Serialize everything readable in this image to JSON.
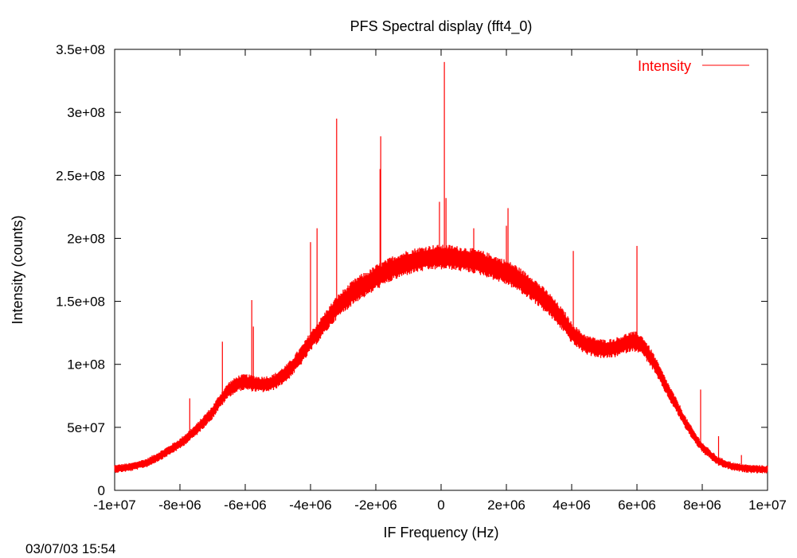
{
  "chart_data": {
    "type": "line",
    "title": "PFS Spectral display (fft4_0)",
    "xlabel": "IF Frequency (Hz)",
    "ylabel": "Intensity (counts)",
    "xlim": [
      -10000000,
      10000000
    ],
    "ylim": [
      0,
      350000000
    ],
    "x_ticks": [
      -10000000,
      -8000000,
      -6000000,
      -4000000,
      -2000000,
      0,
      2000000,
      4000000,
      6000000,
      8000000,
      10000000
    ],
    "x_tick_labels": [
      "-1e+07",
      "-8e+06",
      "-6e+06",
      "-4e+06",
      "-2e+06",
      "0",
      "2e+06",
      "4e+06",
      "6e+06",
      "8e+06",
      "1e+07"
    ],
    "y_ticks": [
      0,
      50000000,
      100000000,
      150000000,
      200000000,
      250000000,
      300000000,
      350000000
    ],
    "y_tick_labels": [
      "0",
      "5e+07",
      "1e+08",
      "1.5e+08",
      "2e+08",
      "2.5e+08",
      "3e+08",
      "3.5e+08"
    ],
    "grid": false,
    "legend": "top-right",
    "series": [
      {
        "name": "Intensity",
        "color": "#ff0000",
        "x": [
          -10000000,
          -9500000,
          -9000000,
          -8500000,
          -8000000,
          -7500000,
          -7000000,
          -6800000,
          -6500000,
          -6200000,
          -6000000,
          -5800000,
          -5500000,
          -5200000,
          -5000000,
          -4700000,
          -4500000,
          -4200000,
          -4000000,
          -3700000,
          -3500000,
          -3200000,
          -3000000,
          -2700000,
          -2500000,
          -2200000,
          -2000000,
          -1700000,
          -1500000,
          -1200000,
          -1000000,
          -700000,
          -500000,
          -200000,
          0,
          300000,
          500000,
          800000,
          1000000,
          1300000,
          1500000,
          1800000,
          2000000,
          2300000,
          2500000,
          2800000,
          3000000,
          3300000,
          3500000,
          3800000,
          4000000,
          4300000,
          4500000,
          4800000,
          5000000,
          5300000,
          5500000,
          5800000,
          6000000,
          6200000,
          6500000,
          6800000,
          7000000,
          7300000,
          7500000,
          7800000,
          8000000,
          8300000,
          8500000,
          8800000,
          9000000,
          9300000,
          9500000,
          9800000,
          10000000
        ],
        "values": [
          17000000,
          18500000,
          22000000,
          29000000,
          37000000,
          48000000,
          62000000,
          70000000,
          80000000,
          85000000,
          86000000,
          85000000,
          84000000,
          85000000,
          88000000,
          94000000,
          100000000,
          110000000,
          118000000,
          128000000,
          135000000,
          145000000,
          150000000,
          157000000,
          161000000,
          165000000,
          169000000,
          173000000,
          176000000,
          179000000,
          181000000,
          183000000,
          184000000,
          185000000,
          185000000,
          185000000,
          184000000,
          183000000,
          182000000,
          180000000,
          178000000,
          175000000,
          173000000,
          169000000,
          165000000,
          160000000,
          155000000,
          148000000,
          142000000,
          133000000,
          125000000,
          118000000,
          115000000,
          113000000,
          112000000,
          113000000,
          115000000,
          118000000,
          118000000,
          114000000,
          102000000,
          87000000,
          77000000,
          63000000,
          53000000,
          41000000,
          34000000,
          27000000,
          23000000,
          20000000,
          18500000,
          17500000,
          17000000,
          16800000,
          16500000
        ],
        "band": 10000000,
        "spikes": [
          {
            "x": -7700000,
            "y": 73000000
          },
          {
            "x": -6700000,
            "y": 118000000
          },
          {
            "x": -5800000,
            "y": 151000000
          },
          {
            "x": -5750000,
            "y": 130000000
          },
          {
            "x": -4000000,
            "y": 197000000
          },
          {
            "x": -3800000,
            "y": 208000000
          },
          {
            "x": -3200000,
            "y": 295000000
          },
          {
            "x": -1850000,
            "y": 281000000
          },
          {
            "x": -1870000,
            "y": 255000000
          },
          {
            "x": -50000,
            "y": 229000000
          },
          {
            "x": 100000,
            "y": 340000000
          },
          {
            "x": 150000,
            "y": 232000000
          },
          {
            "x": 1000000,
            "y": 208000000
          },
          {
            "x": 2050000,
            "y": 224000000
          },
          {
            "x": 2000000,
            "y": 210000000
          },
          {
            "x": 4050000,
            "y": 190000000
          },
          {
            "x": 6000000,
            "y": 194000000
          },
          {
            "x": 7950000,
            "y": 80000000
          },
          {
            "x": 8500000,
            "y": 43000000
          },
          {
            "x": 9200000,
            "y": 28000000
          }
        ]
      }
    ]
  },
  "timestamp": "03/07/03 15:54"
}
